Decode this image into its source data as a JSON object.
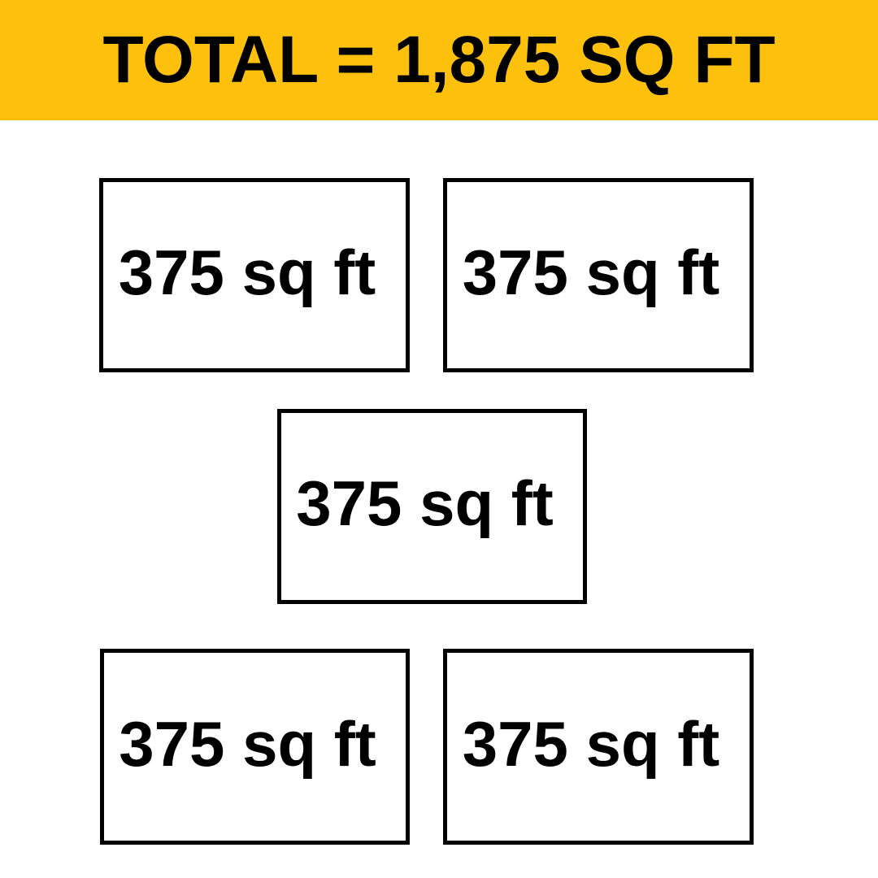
{
  "banner": {
    "title": "TOTAL = 1,875 SQ FT",
    "background_color": "#FDC10D",
    "text_color": "#000000"
  },
  "total": {
    "value": 1875,
    "unit": "SQ FT"
  },
  "boxes": [
    {
      "position": "top-left",
      "label": "375 sq ft",
      "value": 375
    },
    {
      "position": "top-right",
      "label": "375 sq ft",
      "value": 375
    },
    {
      "position": "middle",
      "label": "375 sq ft",
      "value": 375
    },
    {
      "position": "bottom-left",
      "label": "375 sq ft",
      "value": 375
    },
    {
      "position": "bottom-right",
      "label": "375 sq ft",
      "value": 375
    }
  ],
  "styles": {
    "border_color": "#000000",
    "page_background": "#FFFFFF"
  }
}
